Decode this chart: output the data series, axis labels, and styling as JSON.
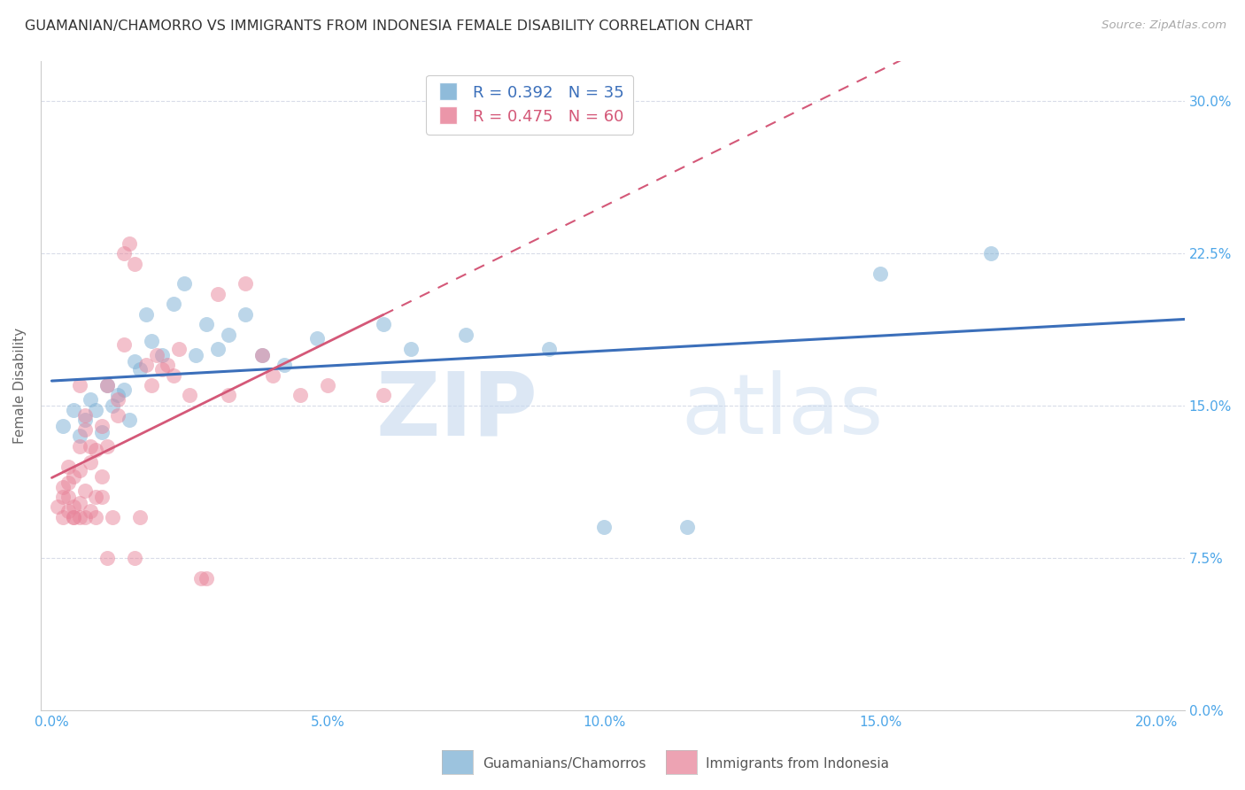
{
  "title": "GUAMANIAN/CHAMORRO VS IMMIGRANTS FROM INDONESIA FEMALE DISABILITY CORRELATION CHART",
  "source": "Source: ZipAtlas.com",
  "ylabel": "Female Disability",
  "xlabel_ticks": [
    "0.0%",
    "",
    "",
    "",
    "",
    "5.0%",
    "",
    "",
    "",
    "",
    "10.0%",
    "",
    "",
    "",
    "",
    "15.0%",
    "",
    "",
    "",
    "",
    "20.0%"
  ],
  "xlabel_vals": [
    0.0,
    0.05,
    0.1,
    0.15,
    0.2
  ],
  "ylabel_ticks_right": [
    "30.0%",
    "22.5%",
    "15.0%",
    "7.5%",
    "0.0%"
  ],
  "ylabel_vals": [
    0.0,
    0.075,
    0.15,
    0.225,
    0.3
  ],
  "xlim": [
    -0.002,
    0.205
  ],
  "ylim": [
    0.0,
    0.32
  ],
  "blue_color": "#7bafd4",
  "pink_color": "#e8849a",
  "blue_R": 0.392,
  "blue_N": 35,
  "pink_R": 0.475,
  "pink_N": 60,
  "blue_line_color": "#3b6fba",
  "pink_line_color": "#d45878",
  "blue_scatter": [
    [
      0.002,
      0.14
    ],
    [
      0.004,
      0.148
    ],
    [
      0.005,
      0.135
    ],
    [
      0.006,
      0.143
    ],
    [
      0.007,
      0.153
    ],
    [
      0.008,
      0.148
    ],
    [
      0.009,
      0.137
    ],
    [
      0.01,
      0.16
    ],
    [
      0.011,
      0.15
    ],
    [
      0.012,
      0.155
    ],
    [
      0.013,
      0.158
    ],
    [
      0.014,
      0.143
    ],
    [
      0.015,
      0.172
    ],
    [
      0.016,
      0.168
    ],
    [
      0.017,
      0.195
    ],
    [
      0.018,
      0.182
    ],
    [
      0.02,
      0.175
    ],
    [
      0.022,
      0.2
    ],
    [
      0.024,
      0.21
    ],
    [
      0.026,
      0.175
    ],
    [
      0.028,
      0.19
    ],
    [
      0.03,
      0.178
    ],
    [
      0.032,
      0.185
    ],
    [
      0.035,
      0.195
    ],
    [
      0.038,
      0.175
    ],
    [
      0.042,
      0.17
    ],
    [
      0.048,
      0.183
    ],
    [
      0.06,
      0.19
    ],
    [
      0.065,
      0.178
    ],
    [
      0.075,
      0.185
    ],
    [
      0.09,
      0.178
    ],
    [
      0.1,
      0.09
    ],
    [
      0.115,
      0.09
    ],
    [
      0.15,
      0.215
    ],
    [
      0.17,
      0.225
    ]
  ],
  "pink_scatter": [
    [
      0.001,
      0.1
    ],
    [
      0.002,
      0.095
    ],
    [
      0.002,
      0.105
    ],
    [
      0.002,
      0.11
    ],
    [
      0.003,
      0.098
    ],
    [
      0.003,
      0.105
    ],
    [
      0.003,
      0.112
    ],
    [
      0.003,
      0.12
    ],
    [
      0.004,
      0.095
    ],
    [
      0.004,
      0.1
    ],
    [
      0.004,
      0.095
    ],
    [
      0.004,
      0.115
    ],
    [
      0.005,
      0.095
    ],
    [
      0.005,
      0.102
    ],
    [
      0.005,
      0.13
    ],
    [
      0.005,
      0.118
    ],
    [
      0.005,
      0.16
    ],
    [
      0.006,
      0.108
    ],
    [
      0.006,
      0.138
    ],
    [
      0.006,
      0.145
    ],
    [
      0.006,
      0.095
    ],
    [
      0.007,
      0.13
    ],
    [
      0.007,
      0.098
    ],
    [
      0.007,
      0.122
    ],
    [
      0.008,
      0.095
    ],
    [
      0.008,
      0.105
    ],
    [
      0.008,
      0.128
    ],
    [
      0.009,
      0.14
    ],
    [
      0.009,
      0.105
    ],
    [
      0.009,
      0.115
    ],
    [
      0.01,
      0.13
    ],
    [
      0.01,
      0.16
    ],
    [
      0.01,
      0.075
    ],
    [
      0.011,
      0.095
    ],
    [
      0.012,
      0.145
    ],
    [
      0.012,
      0.153
    ],
    [
      0.013,
      0.18
    ],
    [
      0.013,
      0.225
    ],
    [
      0.014,
      0.23
    ],
    [
      0.015,
      0.22
    ],
    [
      0.015,
      0.075
    ],
    [
      0.016,
      0.095
    ],
    [
      0.017,
      0.17
    ],
    [
      0.018,
      0.16
    ],
    [
      0.019,
      0.175
    ],
    [
      0.02,
      0.168
    ],
    [
      0.021,
      0.17
    ],
    [
      0.022,
      0.165
    ],
    [
      0.023,
      0.178
    ],
    [
      0.025,
      0.155
    ],
    [
      0.027,
      0.065
    ],
    [
      0.028,
      0.065
    ],
    [
      0.03,
      0.205
    ],
    [
      0.032,
      0.155
    ],
    [
      0.035,
      0.21
    ],
    [
      0.038,
      0.175
    ],
    [
      0.04,
      0.165
    ],
    [
      0.045,
      0.155
    ],
    [
      0.05,
      0.16
    ],
    [
      0.06,
      0.155
    ]
  ],
  "watermark_zip": "ZIP",
  "watermark_atlas": "atlas",
  "legend_blue_label": "Guamanians/Chamorros",
  "legend_pink_label": "Immigrants from Indonesia",
  "background_color": "#ffffff",
  "grid_color": "#d8dce8"
}
